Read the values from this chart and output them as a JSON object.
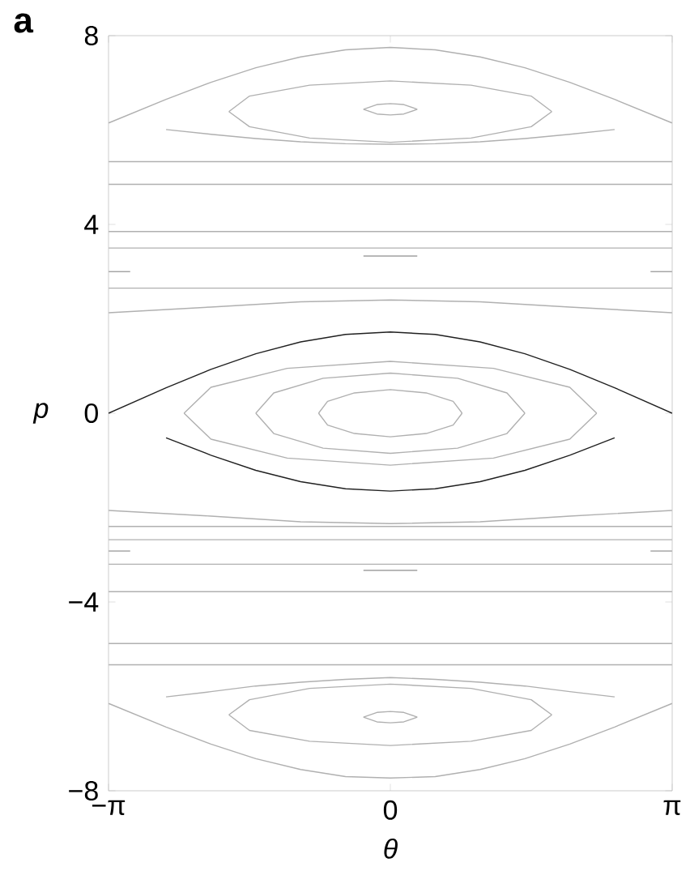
{
  "chart_data": {
    "type": "line",
    "xlabel": "θ",
    "ylabel": "p",
    "annotations": [
      "a"
    ],
    "line_style": "solid",
    "xlim": [
      -3.14159,
      3.14159
    ],
    "ylim": [
      -8,
      8
    ],
    "xticks": [
      {
        "value": -3.14159,
        "label": "−π"
      },
      0,
      {
        "value": 3.14159,
        "label": "π"
      }
    ],
    "yticks": [
      {
        "value": -8,
        "label": "−8"
      },
      {
        "value": -4,
        "label": "−4"
      },
      0,
      4,
      8
    ],
    "series": [
      {
        "color": "#202020",
        "x": [
          -3.14,
          -2.5,
          -2,
          -1.5,
          -1,
          -0.5,
          0,
          0.5,
          1,
          1.5,
          2,
          2.5,
          3.14
        ],
        "values": [
          0,
          0.54,
          0.93,
          1.26,
          1.51,
          1.67,
          1.72,
          1.67,
          1.51,
          1.26,
          0.93,
          0.54,
          0
        ]
      },
      {
        "color": "#202020",
        "x": [
          -2.5,
          -2,
          -1.5,
          -1,
          -0.5,
          0,
          0.5,
          1,
          1.5,
          2,
          2.5
        ],
        "values": [
          -0.52,
          -0.89,
          -1.21,
          -1.45,
          -1.6,
          -1.65,
          -1.6,
          -1.45,
          -1.21,
          -0.89,
          -0.52
        ]
      },
      {
        "color": "#b0b0b0",
        "x": [
          -2.3,
          -2,
          -1.15,
          0,
          1.15,
          2,
          2.3
        ],
        "values": [
          0,
          0.55,
          0.95,
          1.1,
          0.95,
          0.55,
          0
        ]
      },
      {
        "color": "#b0b0b0",
        "x": [
          -2.3,
          -2,
          -1.15,
          0,
          1.15,
          2,
          2.3
        ],
        "values": [
          0,
          -0.55,
          -0.95,
          -1.1,
          -0.95,
          -0.55,
          0
        ]
      },
      {
        "color": "#b0b0b0",
        "x": [
          -1.5,
          -1.3,
          -0.75,
          0,
          0.75,
          1.3,
          1.5
        ],
        "values": [
          0,
          0.43,
          0.74,
          0.85,
          0.74,
          0.43,
          0
        ]
      },
      {
        "color": "#b0b0b0",
        "x": [
          -1.5,
          -1.3,
          -0.75,
          0,
          0.75,
          1.3,
          1.5
        ],
        "values": [
          0,
          -0.43,
          -0.74,
          -0.85,
          -0.74,
          -0.43,
          0
        ]
      },
      {
        "color": "#b0b0b0",
        "x": [
          -0.8,
          -0.7,
          -0.4,
          0,
          0.4,
          0.7,
          0.8
        ],
        "values": [
          0,
          0.25,
          0.43,
          0.5,
          0.43,
          0.25,
          0
        ]
      },
      {
        "color": "#b0b0b0",
        "x": [
          -0.8,
          -0.7,
          -0.4,
          0,
          0.4,
          0.7,
          0.8
        ],
        "values": [
          0,
          -0.25,
          -0.43,
          -0.5,
          -0.43,
          -0.25,
          0
        ]
      },
      {
        "color": "#b0b0b0",
        "x": [
          -3.14,
          0,
          3.14
        ],
        "values": [
          5.33,
          5.33,
          5.33
        ]
      },
      {
        "color": "#b0b0b0",
        "x": [
          -3.14,
          0,
          3.14
        ],
        "values": [
          4.85,
          4.85,
          4.85
        ]
      },
      {
        "color": "#b0b0b0",
        "x": [
          -3.14,
          0,
          3.14
        ],
        "values": [
          3.85,
          3.85,
          3.85
        ]
      },
      {
        "color": "#b0b0b0",
        "x": [
          -3.14,
          0,
          3.14
        ],
        "values": [
          3.5,
          3.5,
          3.5
        ]
      },
      {
        "color": "#a0a0a0",
        "x": [
          -0.3,
          0.3
        ],
        "values": [
          3.33,
          3.33
        ]
      },
      {
        "color": "#a0a0a0",
        "x": [
          -3.14,
          -2.9
        ],
        "values": [
          3.0,
          3.0
        ]
      },
      {
        "color": "#a0a0a0",
        "x": [
          2.9,
          3.14
        ],
        "values": [
          3.0,
          3.0
        ]
      },
      {
        "color": "#b0b0b0",
        "x": [
          -3.14,
          0,
          3.14
        ],
        "values": [
          2.65,
          2.65,
          2.65
        ]
      },
      {
        "color": "#b0b0b0",
        "x": [
          -3.14,
          -2,
          -1,
          0,
          1,
          2,
          3.14
        ],
        "values": [
          2.13,
          2.25,
          2.36,
          2.4,
          2.36,
          2.25,
          2.13
        ]
      },
      {
        "color": "#b0b0b0",
        "x": [
          -3.14,
          -2.5,
          -2,
          -1.5,
          -1,
          -0.5,
          0,
          0.5,
          1,
          1.5,
          2,
          2.5,
          3.14
        ],
        "values": [
          6.15,
          6.65,
          7.01,
          7.32,
          7.55,
          7.7,
          7.75,
          7.7,
          7.55,
          7.32,
          7.01,
          6.65,
          6.15
        ]
      },
      {
        "color": "#b0b0b0",
        "x": [
          -2.5,
          -2,
          -1.5,
          -1,
          -0.5,
          0,
          0.5,
          1,
          1.5,
          2,
          2.5
        ],
        "values": [
          6.01,
          5.91,
          5.82,
          5.75,
          5.71,
          5.7,
          5.71,
          5.75,
          5.82,
          5.91,
          6.01
        ]
      },
      {
        "color": "#b0b0b0",
        "x": [
          -1.8,
          -1.57,
          -0.9,
          0,
          0.9,
          1.57,
          1.8
        ],
        "values": [
          6.39,
          6.72,
          6.95,
          7.04,
          6.95,
          6.72,
          6.39
        ]
      },
      {
        "color": "#b0b0b0",
        "x": [
          -1.8,
          -1.57,
          -0.9,
          0,
          0.9,
          1.57,
          1.8
        ],
        "values": [
          6.39,
          6.07,
          5.83,
          5.74,
          5.83,
          6.07,
          6.39
        ]
      },
      {
        "color": "#b0b0b0",
        "x": [
          -0.3,
          -0.15,
          0,
          0.15,
          0.3
        ],
        "values": [
          6.44,
          6.54,
          6.56,
          6.54,
          6.44
        ]
      },
      {
        "color": "#b0b0b0",
        "x": [
          -0.3,
          -0.15,
          0,
          0.15,
          0.3
        ],
        "values": [
          6.44,
          6.34,
          6.32,
          6.34,
          6.44
        ]
      },
      {
        "color": "#b0b0b0",
        "x": [
          -3.14,
          0,
          3.14
        ],
        "values": [
          -5.33,
          -5.33,
          -5.33
        ]
      },
      {
        "color": "#b0b0b0",
        "x": [
          -3.14,
          0,
          3.14
        ],
        "values": [
          -4.88,
          -4.88,
          -4.88
        ]
      },
      {
        "color": "#b0b0b0",
        "x": [
          -3.14,
          0,
          3.14
        ],
        "values": [
          -3.78,
          -3.78,
          -3.78
        ]
      },
      {
        "color": "#b0b0b0",
        "x": [
          -3.14,
          0,
          3.14
        ],
        "values": [
          -3.2,
          -3.2,
          -3.2
        ]
      },
      {
        "color": "#a0a0a0",
        "x": [
          -0.3,
          0.3
        ],
        "values": [
          -3.33,
          -3.33
        ]
      },
      {
        "color": "#a0a0a0",
        "x": [
          -3.14,
          -2.9
        ],
        "values": [
          -2.92,
          -2.92
        ]
      },
      {
        "color": "#a0a0a0",
        "x": [
          2.9,
          3.14
        ],
        "values": [
          -2.92,
          -2.92
        ]
      },
      {
        "color": "#b0b0b0",
        "x": [
          -3.14,
          0,
          3.14
        ],
        "values": [
          -2.68,
          -2.68,
          -2.68
        ]
      },
      {
        "color": "#b0b0b0",
        "x": [
          -3.14,
          0,
          3.14
        ],
        "values": [
          -2.4,
          -2.4,
          -2.4
        ]
      },
      {
        "color": "#b0b0b0",
        "x": [
          -3.14,
          -2,
          -1,
          0,
          1,
          2,
          3.14
        ],
        "values": [
          -2.06,
          -2.18,
          -2.3,
          -2.34,
          -2.3,
          -2.18,
          -2.06
        ]
      },
      {
        "color": "#b0b0b0",
        "x": [
          -3.14,
          -2.5,
          -2,
          -1.5,
          -1,
          -0.5,
          0,
          0.5,
          1,
          1.5,
          2,
          2.5,
          3.14
        ],
        "values": [
          -6.15,
          -6.65,
          -7.01,
          -7.32,
          -7.55,
          -7.7,
          -7.73,
          -7.7,
          -7.55,
          -7.32,
          -7.01,
          -6.65,
          -6.15
        ]
      },
      {
        "color": "#b0b0b0",
        "x": [
          -2.5,
          -2,
          -1.5,
          -1,
          -0.5,
          0,
          0.5,
          1,
          1.5,
          2,
          2.5
        ],
        "values": [
          -6.01,
          -5.9,
          -5.78,
          -5.7,
          -5.64,
          -5.6,
          -5.64,
          -5.7,
          -5.78,
          -5.9,
          -6.01
        ]
      },
      {
        "color": "#b0b0b0",
        "x": [
          -1.8,
          -1.57,
          -0.9,
          0,
          0.9,
          1.57,
          1.8
        ],
        "values": [
          -6.39,
          -6.07,
          -5.83,
          -5.74,
          -5.83,
          -6.07,
          -6.39
        ]
      },
      {
        "color": "#b0b0b0",
        "x": [
          -1.8,
          -1.57,
          -0.9,
          0,
          0.9,
          1.57,
          1.8
        ],
        "values": [
          -6.39,
          -6.72,
          -6.95,
          -7.04,
          -6.95,
          -6.72,
          -6.39
        ]
      },
      {
        "color": "#b0b0b0",
        "x": [
          -0.3,
          -0.15,
          0,
          0.15,
          0.3
        ],
        "values": [
          -6.44,
          -6.34,
          -6.32,
          -6.34,
          -6.44
        ]
      },
      {
        "color": "#b0b0b0",
        "x": [
          -0.3,
          -0.15,
          0,
          0.15,
          0.3
        ],
        "values": [
          -6.44,
          -6.54,
          -6.56,
          -6.54,
          -6.44
        ]
      }
    ]
  }
}
